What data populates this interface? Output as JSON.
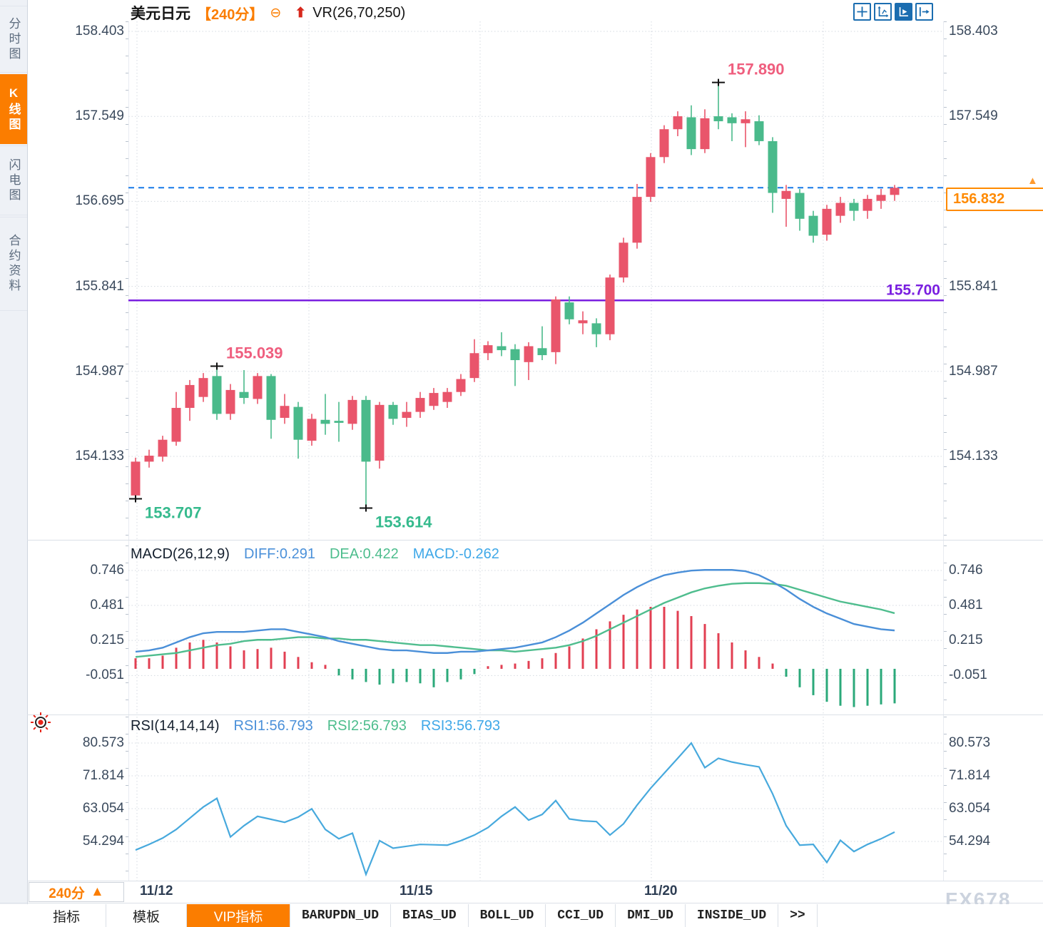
{
  "header": {
    "symbol": "美元日元",
    "period": "【240分】",
    "collapse_icon": "⊖",
    "overlay_indicator": "VR(26,70,250)"
  },
  "sidebar": {
    "tabs": [
      {
        "label": "分时图",
        "active": false
      },
      {
        "label": "K线图",
        "active": true
      },
      {
        "label": "闪电图",
        "active": false
      },
      {
        "label": "合约资料",
        "active": false
      }
    ]
  },
  "toolbar": {
    "icons": [
      "pan-crosshair",
      "axis-scale",
      "axis-play",
      "page-forward"
    ]
  },
  "price_tag": {
    "value": "156.832"
  },
  "period_selector": {
    "label": "240分",
    "arrow": "▲"
  },
  "bottom_tabs": [
    {
      "label": "指标",
      "active": false
    },
    {
      "label": "模板",
      "active": false
    },
    {
      "label": "VIP指标",
      "active": true
    },
    {
      "label": "BARUPDN_UD",
      "active": false
    },
    {
      "label": "BIAS_UD",
      "active": false
    },
    {
      "label": "BOLL_UD",
      "active": false
    },
    {
      "label": "CCI_UD",
      "active": false
    },
    {
      "label": "DMI_UD",
      "active": false
    },
    {
      "label": "INSIDE_UD",
      "active": false
    },
    {
      "label": ">>",
      "active": false
    }
  ],
  "watermark": "FX678",
  "chart_data": {
    "type": "candlestick",
    "title": "美元日元 240分 K线图",
    "x_labels": [
      "11/12",
      "11/15",
      "11/20"
    ],
    "price_panel": {
      "y_ticks": [
        "158.403",
        "157.549",
        "156.695",
        "155.841",
        "154.987",
        "154.133"
      ],
      "current_price": "156.832",
      "horizontal_line": "155.700",
      "annotations": [
        {
          "candle": 0,
          "side": "low",
          "label": "153.707"
        },
        {
          "candle": 6,
          "side": "high",
          "label": "155.039"
        },
        {
          "candle": 17,
          "side": "low",
          "label": "153.614"
        },
        {
          "candle": 43,
          "side": "high",
          "label": "157.890"
        }
      ],
      "candles_ohlc": [
        [
          153.74,
          154.12,
          153.707,
          154.08
        ],
        [
          154.08,
          154.2,
          154.02,
          154.14
        ],
        [
          154.13,
          154.34,
          154.08,
          154.3
        ],
        [
          154.28,
          154.78,
          154.24,
          154.62
        ],
        [
          154.62,
          154.9,
          154.49,
          154.85
        ],
        [
          154.73,
          154.97,
          154.68,
          154.92
        ],
        [
          154.94,
          155.039,
          154.5,
          154.56
        ],
        [
          154.56,
          154.86,
          154.5,
          154.8
        ],
        [
          154.78,
          155.0,
          154.66,
          154.72
        ],
        [
          154.71,
          154.97,
          154.66,
          154.94
        ],
        [
          154.94,
          154.96,
          154.31,
          154.5
        ],
        [
          154.52,
          154.76,
          154.46,
          154.64
        ],
        [
          154.63,
          154.68,
          154.11,
          154.3
        ],
        [
          154.29,
          154.56,
          154.24,
          154.51
        ],
        [
          154.5,
          154.76,
          154.35,
          154.46
        ],
        [
          154.49,
          154.68,
          154.28,
          154.47
        ],
        [
          154.46,
          154.74,
          154.4,
          154.7
        ],
        [
          154.7,
          154.74,
          153.614,
          154.08
        ],
        [
          154.09,
          154.68,
          154.01,
          154.65
        ],
        [
          154.65,
          154.68,
          154.45,
          154.51
        ],
        [
          154.52,
          154.68,
          154.43,
          154.58
        ],
        [
          154.58,
          154.78,
          154.52,
          154.72
        ],
        [
          154.64,
          154.82,
          154.6,
          154.77
        ],
        [
          154.68,
          154.82,
          154.62,
          154.78
        ],
        [
          154.78,
          154.96,
          154.74,
          154.91
        ],
        [
          154.92,
          155.31,
          154.88,
          155.17
        ],
        [
          155.17,
          155.29,
          155.1,
          155.25
        ],
        [
          155.24,
          155.38,
          155.14,
          155.2
        ],
        [
          155.21,
          155.26,
          154.84,
          155.1
        ],
        [
          155.08,
          155.28,
          154.9,
          155.24
        ],
        [
          155.22,
          155.44,
          155.1,
          155.15
        ],
        [
          155.18,
          155.74,
          155.06,
          155.71
        ],
        [
          155.68,
          155.74,
          155.46,
          155.51
        ],
        [
          155.47,
          155.59,
          155.36,
          155.5
        ],
        [
          155.47,
          155.52,
          155.23,
          155.36
        ],
        [
          155.36,
          155.96,
          155.3,
          155.93
        ],
        [
          155.93,
          156.33,
          155.88,
          156.28
        ],
        [
          156.28,
          156.87,
          156.22,
          156.74
        ],
        [
          156.74,
          157.18,
          156.69,
          157.14
        ],
        [
          157.14,
          157.46,
          157.08,
          157.42
        ],
        [
          157.42,
          157.6,
          157.35,
          157.55
        ],
        [
          157.54,
          157.66,
          157.16,
          157.22
        ],
        [
          157.22,
          157.62,
          157.18,
          157.53
        ],
        [
          157.55,
          157.89,
          157.42,
          157.5
        ],
        [
          157.54,
          157.58,
          157.3,
          157.48
        ],
        [
          157.48,
          157.6,
          157.24,
          157.52
        ],
        [
          157.5,
          157.56,
          157.26,
          157.3
        ],
        [
          157.3,
          157.34,
          156.58,
          156.78
        ],
        [
          156.72,
          156.86,
          156.44,
          156.8
        ],
        [
          156.78,
          156.82,
          156.4,
          156.52
        ],
        [
          156.55,
          156.6,
          156.28,
          156.35
        ],
        [
          156.36,
          156.66,
          156.3,
          156.62
        ],
        [
          156.55,
          156.74,
          156.48,
          156.68
        ],
        [
          156.68,
          156.72,
          156.5,
          156.6
        ],
        [
          156.6,
          156.76,
          156.52,
          156.72
        ],
        [
          156.7,
          156.82,
          156.62,
          156.76
        ],
        [
          156.76,
          156.86,
          156.7,
          156.832
        ]
      ]
    },
    "macd_panel": {
      "title": "MACD(26,12,9)",
      "diff_label": "DIFF:0.291",
      "dea_label": "DEA:0.422",
      "macd_label": "MACD:-0.262",
      "y_ticks": [
        "0.746",
        "0.481",
        "0.215",
        "-0.051"
      ],
      "diff": [
        0.13,
        0.14,
        0.16,
        0.2,
        0.24,
        0.27,
        0.28,
        0.28,
        0.28,
        0.29,
        0.3,
        0.3,
        0.28,
        0.26,
        0.24,
        0.21,
        0.19,
        0.17,
        0.15,
        0.14,
        0.14,
        0.13,
        0.12,
        0.12,
        0.13,
        0.13,
        0.14,
        0.15,
        0.16,
        0.18,
        0.2,
        0.24,
        0.29,
        0.35,
        0.42,
        0.49,
        0.56,
        0.62,
        0.67,
        0.71,
        0.73,
        0.745,
        0.75,
        0.75,
        0.75,
        0.74,
        0.71,
        0.66,
        0.6,
        0.53,
        0.47,
        0.42,
        0.38,
        0.34,
        0.32,
        0.3,
        0.291
      ],
      "dea": [
        0.09,
        0.1,
        0.11,
        0.12,
        0.14,
        0.16,
        0.18,
        0.19,
        0.21,
        0.22,
        0.22,
        0.23,
        0.24,
        0.24,
        0.23,
        0.23,
        0.22,
        0.22,
        0.21,
        0.2,
        0.19,
        0.18,
        0.18,
        0.17,
        0.16,
        0.15,
        0.14,
        0.14,
        0.13,
        0.14,
        0.15,
        0.16,
        0.18,
        0.21,
        0.25,
        0.3,
        0.35,
        0.4,
        0.45,
        0.5,
        0.54,
        0.58,
        0.61,
        0.63,
        0.645,
        0.65,
        0.65,
        0.645,
        0.63,
        0.6,
        0.57,
        0.54,
        0.51,
        0.49,
        0.47,
        0.45,
        0.422
      ],
      "hist": [
        0.08,
        0.08,
        0.1,
        0.16,
        0.2,
        0.22,
        0.2,
        0.17,
        0.14,
        0.15,
        0.16,
        0.13,
        0.09,
        0.05,
        0.03,
        -0.05,
        -0.08,
        -0.1,
        -0.12,
        -0.11,
        -0.1,
        -0.11,
        -0.14,
        -0.1,
        -0.08,
        -0.04,
        0.02,
        0.03,
        0.04,
        0.06,
        0.08,
        0.12,
        0.17,
        0.23,
        0.3,
        0.36,
        0.41,
        0.45,
        0.47,
        0.47,
        0.44,
        0.4,
        0.34,
        0.27,
        0.2,
        0.14,
        0.09,
        0.04,
        -0.06,
        -0.14,
        -0.2,
        -0.25,
        -0.28,
        -0.29,
        -0.28,
        -0.27,
        -0.262
      ]
    },
    "rsi_panel": {
      "title": "RSI(14,14,14)",
      "rsi1_label": "RSI1:56.793",
      "rsi2_label": "RSI2:56.793",
      "rsi3_label": "RSI3:56.793",
      "y_ticks": [
        "80.573",
        "71.814",
        "63.054",
        "54.294"
      ],
      "rsi": [
        52.0,
        53.5,
        55.2,
        57.5,
        60.5,
        63.5,
        65.8,
        55.5,
        58.5,
        61.0,
        60.2,
        59.4,
        60.8,
        63.0,
        57.5,
        55.0,
        56.5,
        45.5,
        54.5,
        52.5,
        53.0,
        53.5,
        53.4,
        53.3,
        54.5,
        56.0,
        58.0,
        61.0,
        63.5,
        60.0,
        61.5,
        65.2,
        60.3,
        59.8,
        59.6,
        56.0,
        59.0,
        64.0,
        68.5,
        72.5,
        76.5,
        80.57,
        74.0,
        76.5,
        75.5,
        74.8,
        74.2,
        67.0,
        58.5,
        53.3,
        53.5,
        48.7,
        54.6,
        51.6,
        53.5,
        55.0,
        56.793
      ]
    },
    "colors": {
      "up": "#e9556b",
      "down": "#4aba8b",
      "diff_line": "#4a8fd8",
      "dea_line": "#4fbd8e",
      "hist_up": "#e23f52",
      "hist_down": "#2ba97a",
      "rsi_line": "#47a9dd",
      "current_price_line": "#1779e8",
      "support_line": "#7a1fe0",
      "grid": "#d4d9e0",
      "accent_orange": "#fb7d00",
      "annotation_high": "#ef5e7e",
      "annotation_low": "#35ba8d",
      "marker": "#111111"
    }
  }
}
